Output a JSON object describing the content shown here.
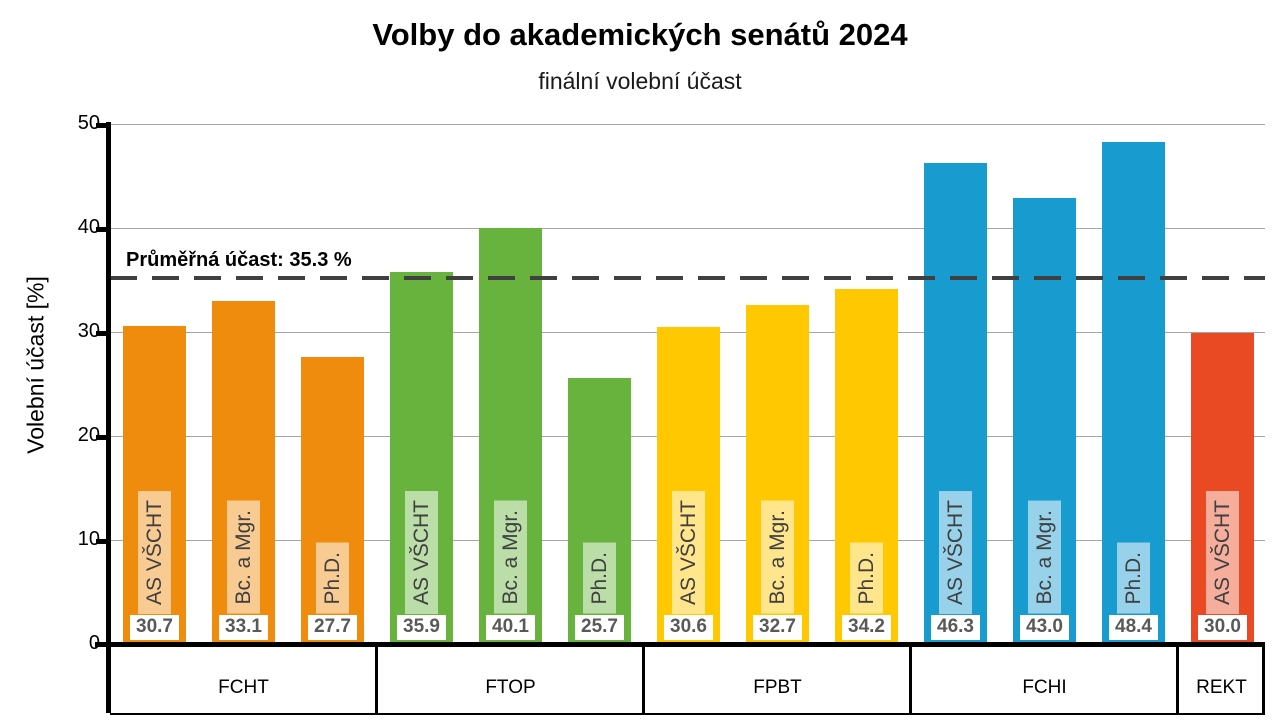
{
  "title": "Volby do akademických senátů 2024",
  "subtitle": "finální volební účast",
  "y_axis_title": "Volební účast [%]",
  "average_annotation": "Průměřná účast: 35.3 %",
  "colors": {
    "grid": "#a6a6a6",
    "average_line": "#404040",
    "value_text": "#595959",
    "bar_label_text": "#3f3f3f",
    "axis": "#000000"
  },
  "chart_data": {
    "type": "bar",
    "title": "Volby do akademických senátů 2024",
    "subtitle": "finální volební účast",
    "ylabel": "Volební účast [%]",
    "ylim": [
      0,
      50
    ],
    "yticks": [
      0,
      10,
      20,
      30,
      40,
      50
    ],
    "grid": "horizontal",
    "legend": "none",
    "average": {
      "value": 35.3,
      "label": "Průměřná účast: 35.3 %"
    },
    "groups": [
      {
        "label": "FCHT",
        "color": "#EF8C0E",
        "tint": "#F8CB93",
        "bars": [
          {
            "label": "AS VŠCHT",
            "value": 30.7
          },
          {
            "label": "Bc. a Mgr.",
            "value": 33.1
          },
          {
            "label": "Ph.D.",
            "value": 27.7
          }
        ]
      },
      {
        "label": "FTOP",
        "color": "#67B33E",
        "tint": "#BBDDA8",
        "bars": [
          {
            "label": "AS VŠCHT",
            "value": 35.9
          },
          {
            "label": "Bc. a Mgr.",
            "value": 40.1
          },
          {
            "label": "Ph.D.",
            "value": 25.7
          }
        ]
      },
      {
        "label": "FPBT",
        "color": "#FFC800",
        "tint": "#FFE68C",
        "bars": [
          {
            "label": "AS VŠCHT",
            "value": 30.6
          },
          {
            "label": "Bc. a Mgr.",
            "value": 32.7
          },
          {
            "label": "Ph.D.",
            "value": 34.2
          }
        ]
      },
      {
        "label": "FCHI",
        "color": "#189CD0",
        "tint": "#97D2EA",
        "bars": [
          {
            "label": "AS VŠCHT",
            "value": 46.3
          },
          {
            "label": "Bc. a Mgr.",
            "value": 43.0
          },
          {
            "label": "Ph.D.",
            "value": 48.4
          }
        ]
      },
      {
        "label": "REKT",
        "color": "#EA4A23",
        "tint": "#F6AE9C",
        "bars": [
          {
            "label": "AS VŠCHT",
            "value": 30.0
          }
        ]
      }
    ]
  }
}
